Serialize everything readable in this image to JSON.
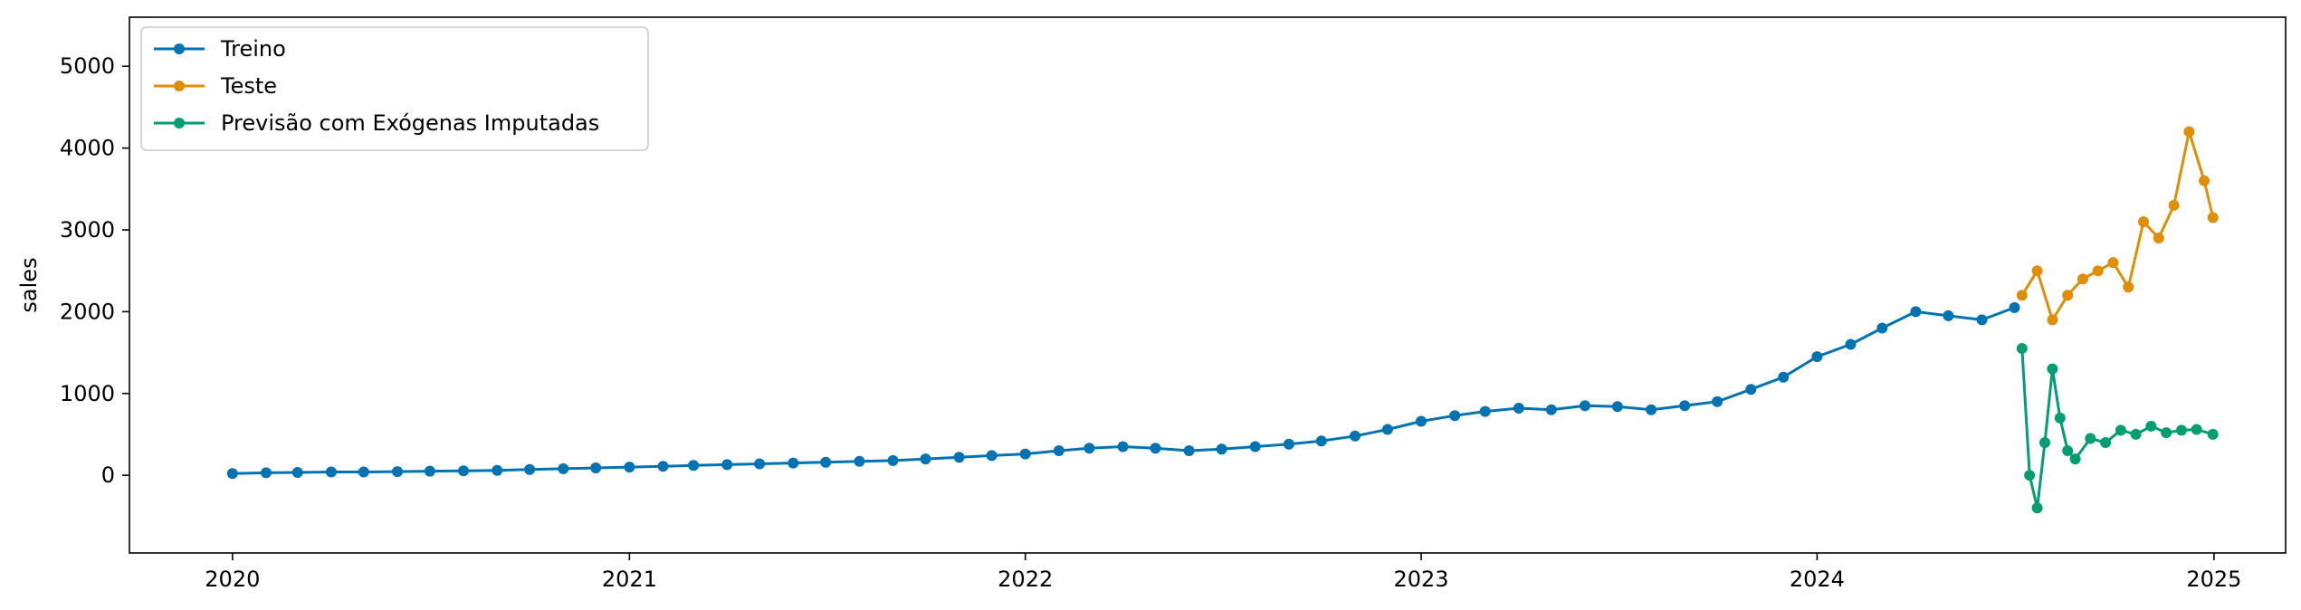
{
  "chart_data": {
    "type": "line",
    "title": "",
    "xlabel": "",
    "ylabel": "sales",
    "xlim": [
      "2019-09-28",
      "2025-03-08"
    ],
    "ylim": [
      -950,
      5600
    ],
    "x_ticks": [
      "2020",
      "2021",
      "2022",
      "2023",
      "2024",
      "2025"
    ],
    "y_ticks": [
      0,
      1000,
      2000,
      3000,
      4000,
      5000
    ],
    "grid": false,
    "legend_position": "top-left",
    "markers": true,
    "series": [
      {
        "name": "Treino",
        "color": "#0173b2",
        "x": [
          "2020-01-01",
          "2020-02-01",
          "2020-03-01",
          "2020-04-01",
          "2020-05-01",
          "2020-06-01",
          "2020-07-01",
          "2020-08-01",
          "2020-09-01",
          "2020-10-01",
          "2020-11-01",
          "2020-12-01",
          "2021-01-01",
          "2021-02-01",
          "2021-03-01",
          "2021-04-01",
          "2021-05-01",
          "2021-06-01",
          "2021-07-01",
          "2021-08-01",
          "2021-09-01",
          "2021-10-01",
          "2021-11-01",
          "2021-12-01",
          "2022-01-01",
          "2022-02-01",
          "2022-03-01",
          "2022-04-01",
          "2022-05-01",
          "2022-06-01",
          "2022-07-01",
          "2022-08-01",
          "2022-09-01",
          "2022-10-01",
          "2022-11-01",
          "2022-12-01",
          "2023-01-01",
          "2023-02-01",
          "2023-03-01",
          "2023-04-01",
          "2023-05-01",
          "2023-06-01",
          "2023-07-01",
          "2023-08-01",
          "2023-09-01",
          "2023-10-01",
          "2023-11-01",
          "2023-12-01",
          "2024-01-01",
          "2024-02-01",
          "2024-03-01",
          "2024-04-01",
          "2024-05-01",
          "2024-06-01",
          "2024-07-01"
        ],
        "values": [
          20,
          30,
          35,
          40,
          40,
          45,
          50,
          55,
          60,
          70,
          80,
          90,
          100,
          110,
          120,
          130,
          140,
          150,
          160,
          170,
          180,
          200,
          220,
          240,
          260,
          300,
          330,
          350,
          330,
          300,
          320,
          350,
          380,
          420,
          480,
          560,
          660,
          730,
          780,
          820,
          800,
          850,
          840,
          800,
          850,
          900,
          1050,
          1200,
          1450,
          1600,
          1800,
          2000,
          1950,
          1900,
          2050
        ]
      },
      {
        "name": "Teste",
        "color": "#de8f05",
        "x": [
          "2024-07-08",
          "2024-07-22",
          "2024-08-05",
          "2024-08-19",
          "2024-09-02",
          "2024-09-16",
          "2024-09-30",
          "2024-10-14",
          "2024-10-28",
          "2024-11-11",
          "2024-11-25",
          "2024-12-09",
          "2024-12-23",
          "2024-12-31"
        ],
        "values": [
          2200,
          2500,
          1900,
          2200,
          2400,
          2500,
          2600,
          2300,
          3100,
          2900,
          3300,
          4200,
          3600,
          3150
        ]
      },
      {
        "name": "Previsão com Exógenas Imputadas",
        "color": "#029e73",
        "x": [
          "2024-07-08",
          "2024-07-15",
          "2024-07-22",
          "2024-07-29",
          "2024-08-05",
          "2024-08-12",
          "2024-08-19",
          "2024-08-26",
          "2024-09-09",
          "2024-09-23",
          "2024-10-07",
          "2024-10-21",
          "2024-11-04",
          "2024-11-18",
          "2024-12-02",
          "2024-12-16",
          "2024-12-31"
        ],
        "values": [
          1550,
          0,
          -400,
          400,
          1300,
          700,
          300,
          200,
          450,
          400,
          550,
          500,
          600,
          520,
          550,
          560,
          500
        ]
      }
    ]
  }
}
